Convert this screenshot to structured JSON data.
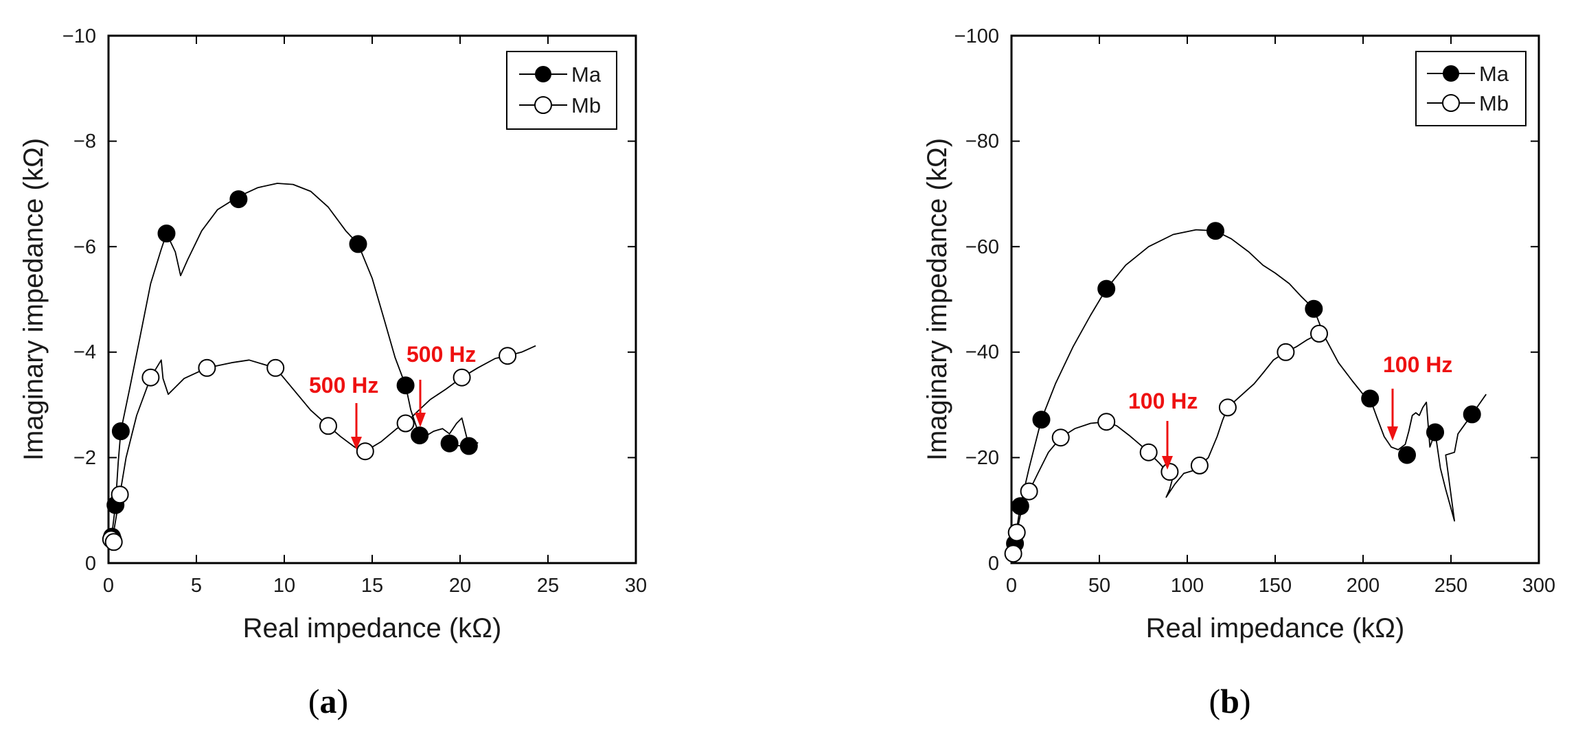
{
  "chart_data": [
    {
      "type": "line",
      "panel_label": "a",
      "xlabel": "Real impedance (kΩ)",
      "ylabel": "Imaginary impedance (kΩ)",
      "xlim": [
        0,
        30
      ],
      "ylim": [
        0,
        -10
      ],
      "xticks": [
        "0",
        "5",
        "10",
        "15",
        "20",
        "25",
        "30"
      ],
      "yticks": [
        "0",
        "−2",
        "−4",
        "−6",
        "−8",
        "−10"
      ],
      "legend_position": "top-right",
      "series": [
        {
          "name": "Ma",
          "marker": "filled-circle",
          "points": [
            [
              0.2,
              -0.5
            ],
            [
              0.25,
              -0.45
            ],
            [
              0.4,
              -1.1
            ],
            [
              0.7,
              -2.5
            ],
            [
              3.3,
              -6.25
            ],
            [
              7.4,
              -6.9
            ],
            [
              14.2,
              -6.05
            ],
            [
              16.9,
              -3.37
            ],
            [
              17.7,
              -2.42
            ],
            [
              19.4,
              -2.27
            ],
            [
              20.5,
              -2.22
            ]
          ],
          "curve": [
            [
              0.15,
              -0.4
            ],
            [
              0.25,
              -0.7
            ],
            [
              0.4,
              -1.1
            ],
            [
              0.55,
              -1.9
            ],
            [
              0.7,
              -2.5
            ],
            [
              1.2,
              -3.3
            ],
            [
              1.8,
              -4.3
            ],
            [
              2.4,
              -5.3
            ],
            [
              3.0,
              -5.95
            ],
            [
              3.3,
              -6.25
            ],
            [
              3.8,
              -5.9
            ],
            [
              4.1,
              -5.45
            ],
            [
              4.5,
              -5.75
            ],
            [
              5.3,
              -6.3
            ],
            [
              6.2,
              -6.7
            ],
            [
              7.4,
              -6.95
            ],
            [
              8.5,
              -7.12
            ],
            [
              9.6,
              -7.2
            ],
            [
              10.5,
              -7.18
            ],
            [
              11.5,
              -7.05
            ],
            [
              12.5,
              -6.75
            ],
            [
              13.5,
              -6.3
            ],
            [
              14.2,
              -6.05
            ],
            [
              15.0,
              -5.4
            ],
            [
              15.7,
              -4.6
            ],
            [
              16.3,
              -3.9
            ],
            [
              16.9,
              -3.37
            ],
            [
              17.2,
              -2.9
            ],
            [
              17.5,
              -2.6
            ],
            [
              17.7,
              -2.42
            ],
            [
              18.0,
              -2.4
            ],
            [
              18.5,
              -2.5
            ],
            [
              19.0,
              -2.55
            ],
            [
              19.4,
              -2.45
            ],
            [
              19.8,
              -2.65
            ],
            [
              20.1,
              -2.75
            ],
            [
              20.5,
              -2.22
            ],
            [
              21.0,
              -2.28
            ],
            [
              20.5,
              -2.2
            ],
            [
              19.4,
              -2.25
            ],
            [
              19.1,
              -2.3
            ]
          ]
        },
        {
          "name": "Mb",
          "marker": "open-circle",
          "points": [
            [
              0.15,
              -0.45
            ],
            [
              0.3,
              -0.4
            ],
            [
              0.65,
              -1.3
            ],
            [
              2.4,
              -3.52
            ],
            [
              5.6,
              -3.7
            ],
            [
              9.5,
              -3.7
            ],
            [
              12.5,
              -2.6
            ],
            [
              14.6,
              -2.12
            ],
            [
              16.9,
              -2.65
            ],
            [
              20.1,
              -3.52
            ],
            [
              22.7,
              -3.93
            ]
          ],
          "curve": [
            [
              0.1,
              -0.4
            ],
            [
              0.3,
              -0.6
            ],
            [
              0.5,
              -1.0
            ],
            [
              0.65,
              -1.3
            ],
            [
              1.0,
              -2.0
            ],
            [
              1.6,
              -2.8
            ],
            [
              2.4,
              -3.52
            ],
            [
              3.0,
              -3.85
            ],
            [
              3.1,
              -3.5
            ],
            [
              3.4,
              -3.2
            ],
            [
              4.3,
              -3.5
            ],
            [
              5.6,
              -3.7
            ],
            [
              7.0,
              -3.8
            ],
            [
              8.0,
              -3.85
            ],
            [
              9.5,
              -3.7
            ],
            [
              10.5,
              -3.3
            ],
            [
              11.5,
              -2.9
            ],
            [
              12.5,
              -2.6
            ],
            [
              13.2,
              -2.4
            ],
            [
              14.0,
              -2.2
            ],
            [
              14.6,
              -2.12
            ],
            [
              15.5,
              -2.3
            ],
            [
              16.4,
              -2.55
            ],
            [
              16.9,
              -2.65
            ],
            [
              17.5,
              -2.85
            ],
            [
              18.3,
              -3.1
            ],
            [
              19.2,
              -3.3
            ],
            [
              20.1,
              -3.52
            ],
            [
              21.0,
              -3.7
            ],
            [
              22.0,
              -3.88
            ],
            [
              22.7,
              -3.93
            ],
            [
              23.5,
              -4.0
            ],
            [
              24.3,
              -4.12
            ]
          ]
        }
      ],
      "annotations": [
        {
          "text": "500 Hz",
          "arrow_tip": [
            14.1,
            -2.2
          ]
        },
        {
          "text": "500 Hz",
          "arrow_tip": [
            17.5,
            -2.55
          ]
        }
      ]
    },
    {
      "type": "line",
      "panel_label": "b",
      "xlabel": "Real impedance (kΩ)",
      "ylabel": "Imaginary impedance (kΩ)",
      "xlim": [
        0,
        300
      ],
      "ylim": [
        0,
        -100
      ],
      "xticks": [
        "0",
        "50",
        "100",
        "150",
        "200",
        "250",
        "300"
      ],
      "yticks": [
        "0",
        "−20",
        "−40",
        "−60",
        "−80",
        "−100"
      ],
      "legend_position": "top-right",
      "series": [
        {
          "name": "Ma",
          "marker": "filled-circle",
          "points": [
            [
              2,
              -3.7
            ],
            [
              5,
              -10.8
            ],
            [
              17,
              -27.2
            ],
            [
              54,
              -52
            ],
            [
              116,
              -63
            ],
            [
              172,
              -48.2
            ],
            [
              204,
              -31.2
            ],
            [
              225,
              -20.5
            ],
            [
              241,
              -24.8
            ],
            [
              262,
              -28.2
            ]
          ],
          "curve": [
            [
              1,
              -2.5
            ],
            [
              2,
              -3.7
            ],
            [
              3,
              -6.5
            ],
            [
              5,
              -10.8
            ],
            [
              10,
              -18
            ],
            [
              17,
              -27.2
            ],
            [
              25,
              -34
            ],
            [
              35,
              -41
            ],
            [
              45,
              -47
            ],
            [
              54,
              -52
            ],
            [
              65,
              -56.5
            ],
            [
              78,
              -60
            ],
            [
              92,
              -62.3
            ],
            [
              105,
              -63.2
            ],
            [
              116,
              -63
            ],
            [
              125,
              -61.5
            ],
            [
              135,
              -59
            ],
            [
              143,
              -56.5
            ],
            [
              150,
              -55
            ],
            [
              158,
              -53
            ],
            [
              165,
              -50.5
            ],
            [
              172,
              -48.2
            ],
            [
              178,
              -43
            ],
            [
              186,
              -38
            ],
            [
              194,
              -34.5
            ],
            [
              200,
              -32
            ],
            [
              204,
              -31.2
            ],
            [
              208,
              -27.5
            ],
            [
              212,
              -24
            ],
            [
              216,
              -22
            ],
            [
              220,
              -21.5
            ],
            [
              224,
              -22.5
            ],
            [
              226,
              -25
            ],
            [
              228,
              -28
            ],
            [
              230,
              -28.5
            ],
            [
              232,
              -28
            ],
            [
              234,
              -29.5
            ],
            [
              236,
              -30.5
            ],
            [
              238,
              -22
            ],
            [
              241,
              -24.8
            ],
            [
              244,
              -18
            ],
            [
              247,
              -14
            ],
            [
              252,
              -8
            ],
            [
              247,
              -20.5
            ],
            [
              252,
              -21
            ],
            [
              254,
              -24.5
            ],
            [
              262,
              -28.2
            ],
            [
              270,
              -32
            ]
          ]
        },
        {
          "name": "Mb",
          "marker": "open-circle",
          "points": [
            [
              1,
              -1.8
            ],
            [
              3,
              -5.8
            ],
            [
              10,
              -13.6
            ],
            [
              28,
              -23.8
            ],
            [
              54,
              -26.8
            ],
            [
              78,
              -21
            ],
            [
              90,
              -17.3
            ],
            [
              107,
              -18.5
            ],
            [
              123,
              -29.5
            ],
            [
              156,
              -40
            ],
            [
              175,
              -43.5
            ]
          ],
          "curve": [
            [
              0,
              -1.5
            ],
            [
              1,
              -1.8
            ],
            [
              2,
              -3.5
            ],
            [
              3,
              -5.8
            ],
            [
              5,
              -9
            ],
            [
              10,
              -13.6
            ],
            [
              15,
              -17
            ],
            [
              21,
              -21
            ],
            [
              28,
              -23.8
            ],
            [
              36,
              -25.5
            ],
            [
              45,
              -26.5
            ],
            [
              54,
              -26.8
            ],
            [
              60,
              -26
            ],
            [
              67,
              -24.2
            ],
            [
              73,
              -22.5
            ],
            [
              78,
              -21
            ],
            [
              84,
              -19
            ],
            [
              88,
              -17.5
            ],
            [
              90,
              -17.3
            ],
            [
              92,
              -16.5
            ],
            [
              90,
              -14
            ],
            [
              88,
              -12.5
            ],
            [
              93,
              -15
            ],
            [
              98,
              -17
            ],
            [
              103,
              -17.5
            ],
            [
              107,
              -18.5
            ],
            [
              112,
              -20
            ],
            [
              117,
              -24
            ],
            [
              120,
              -27
            ],
            [
              123,
              -29.5
            ],
            [
              128,
              -31
            ],
            [
              133,
              -32.5
            ],
            [
              138,
              -34
            ],
            [
              143,
              -36
            ],
            [
              149,
              -38.5
            ],
            [
              156,
              -40
            ],
            [
              162,
              -41
            ],
            [
              168,
              -42.3
            ],
            [
              175,
              -43.5
            ]
          ]
        }
      ],
      "annotations": [
        {
          "text": "100 Hz",
          "arrow_tip": [
            89,
            -17.6
          ]
        },
        {
          "text": "100 Hz",
          "arrow_tip": [
            217,
            -23
          ]
        }
      ]
    }
  ],
  "captions": {
    "a": "a",
    "b": "b",
    "open": "(",
    "close": ")"
  }
}
